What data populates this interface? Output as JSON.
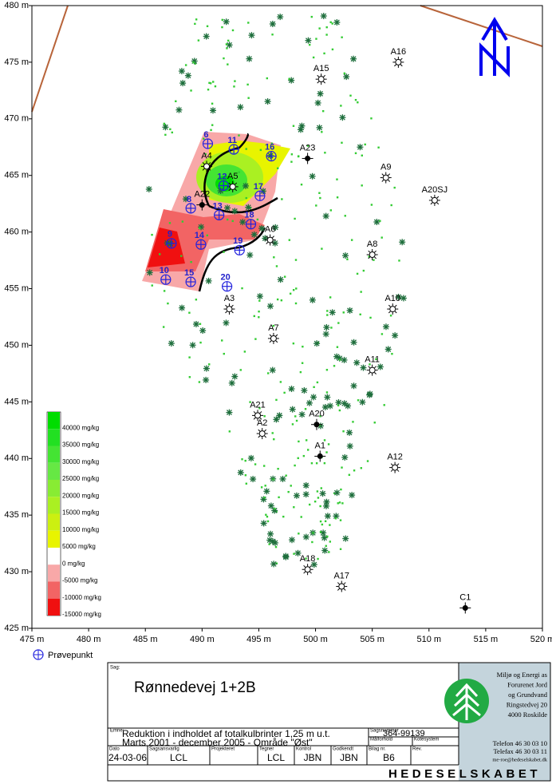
{
  "axes": {
    "xticks": [
      {
        "value": 475,
        "label": "475 m"
      },
      {
        "value": 480,
        "label": "480 m"
      },
      {
        "value": 485,
        "label": "485 m"
      },
      {
        "value": 490,
        "label": "490 m"
      },
      {
        "value": 495,
        "label": "495 m"
      },
      {
        "value": 500,
        "label": "500 m"
      },
      {
        "value": 505,
        "label": "505 m"
      },
      {
        "value": 510,
        "label": "510 m"
      },
      {
        "value": 515,
        "label": "515 m"
      },
      {
        "value": 520,
        "label": "520 m"
      }
    ],
    "yticks": [
      {
        "value": 425,
        "label": "425 m"
      },
      {
        "value": 430,
        "label": "430 m"
      },
      {
        "value": 435,
        "label": "435 m"
      },
      {
        "value": 440,
        "label": "440 m"
      },
      {
        "value": 445,
        "label": "445 m"
      },
      {
        "value": 450,
        "label": "450 m"
      },
      {
        "value": 455,
        "label": "455 m"
      },
      {
        "value": 460,
        "label": "460 m"
      },
      {
        "value": 465,
        "label": "465 m"
      },
      {
        "value": 470,
        "label": "470 m"
      },
      {
        "value": 475,
        "label": "475 m"
      },
      {
        "value": 480,
        "label": "480 m"
      }
    ],
    "xlim": [
      475,
      520
    ],
    "ylim": [
      425,
      480
    ]
  },
  "wells": [
    {
      "label": "A15",
      "x": 500.5,
      "y": 473.5,
      "kind": "open"
    },
    {
      "label": "A16",
      "x": 507.3,
      "y": 475.0,
      "kind": "open"
    },
    {
      "label": "A23",
      "x": 499.3,
      "y": 466.5,
      "kind": "filled"
    },
    {
      "label": "A4",
      "x": 490.4,
      "y": 465.8,
      "kind": "open"
    },
    {
      "label": "A5",
      "x": 492.7,
      "y": 464.0,
      "kind": "open"
    },
    {
      "label": "A22",
      "x": 490.0,
      "y": 462.4,
      "kind": "filled"
    },
    {
      "label": "A9",
      "x": 506.2,
      "y": 464.8,
      "kind": "open"
    },
    {
      "label": "A20SJ",
      "x": 510.5,
      "y": 462.8,
      "kind": "open"
    },
    {
      "label": "A6",
      "x": 496.0,
      "y": 459.3,
      "kind": "open"
    },
    {
      "label": "A8",
      "x": 505.0,
      "y": 458.0,
      "kind": "open"
    },
    {
      "label": "A3",
      "x": 492.4,
      "y": 453.2,
      "kind": "open"
    },
    {
      "label": "A10",
      "x": 506.8,
      "y": 453.2,
      "kind": "open"
    },
    {
      "label": "A7",
      "x": 496.3,
      "y": 450.6,
      "kind": "open"
    },
    {
      "label": "A11",
      "x": 505.0,
      "y": 447.8,
      "kind": "open"
    },
    {
      "label": "A21",
      "x": 494.9,
      "y": 443.8,
      "kind": "open"
    },
    {
      "label": "A2",
      "x": 495.3,
      "y": 442.2,
      "kind": "open"
    },
    {
      "label": "A20",
      "x": 500.1,
      "y": 443.0,
      "kind": "filled"
    },
    {
      "label": "A1",
      "x": 500.4,
      "y": 440.2,
      "kind": "filled"
    },
    {
      "label": "A12",
      "x": 507.0,
      "y": 439.2,
      "kind": "open"
    },
    {
      "label": "A18",
      "x": 499.3,
      "y": 430.2,
      "kind": "open"
    },
    {
      "label": "A17",
      "x": 502.3,
      "y": 428.7,
      "kind": "open"
    },
    {
      "label": "C1",
      "x": 513.2,
      "y": 426.8,
      "kind": "filled"
    }
  ],
  "probe_points": [
    {
      "label": "6",
      "x": 490.5,
      "y": 467.8
    },
    {
      "label": "11",
      "x": 492.8,
      "y": 467.3
    },
    {
      "label": "16",
      "x": 496.1,
      "y": 466.7
    },
    {
      "label": "12",
      "x": 491.9,
      "y": 464.1
    },
    {
      "label": "17",
      "x": 495.1,
      "y": 463.2
    },
    {
      "label": "8",
      "x": 489.0,
      "y": 462.1
    },
    {
      "label": "13",
      "x": 491.5,
      "y": 461.5
    },
    {
      "label": "18",
      "x": 494.3,
      "y": 460.7
    },
    {
      "label": "9",
      "x": 487.3,
      "y": 459.0
    },
    {
      "label": "14",
      "x": 489.9,
      "y": 458.9
    },
    {
      "label": "19",
      "x": 493.3,
      "y": 458.4
    },
    {
      "label": "10",
      "x": 486.8,
      "y": 455.8
    },
    {
      "label": "15",
      "x": 489.0,
      "y": 455.6
    },
    {
      "label": "20",
      "x": 492.2,
      "y": 455.2
    }
  ],
  "legend": {
    "items": [
      {
        "label": "40000 mg/kg",
        "color": "#00dd00"
      },
      {
        "label": "35000 mg/kg",
        "color": "#22e022"
      },
      {
        "label": "30000 mg/kg",
        "color": "#44e433"
      },
      {
        "label": "25000 mg/kg",
        "color": "#66e844"
      },
      {
        "label": "20000 mg/kg",
        "color": "#88ec33"
      },
      {
        "label": "15000 mg/kg",
        "color": "#aaf022"
      },
      {
        "label": "10000 mg/kg",
        "color": "#ccf011"
      },
      {
        "label": "5000 mg/kg",
        "color": "#e8f400"
      },
      {
        "label": "0 mg/kg",
        "color": "#ffffff"
      },
      {
        "label": "-5000 mg/kg",
        "color": "#f8a8a8"
      },
      {
        "label": "-10000 mg/kg",
        "color": "#f26464"
      },
      {
        "label": "-15000 mg/kg",
        "color": "#f01010"
      }
    ],
    "probe_label": "Prøvepunkt"
  },
  "title_block": {
    "sag_label": "Sag:",
    "title": "Rønnedevej 1+2B",
    "emne_label": "Emne:",
    "subject_line1": "Reduktion i indholdet af totalkulbrinter 1,25 m u.t.",
    "subject_line2": "Marts 2001 - december 2005 - Område \"Øst\"",
    "case_no_label": "Sagsnummer",
    "case_no": "364-99139",
    "scale_label": "Målforhold",
    "coord_label": "Kotesystem",
    "fields": [
      {
        "label": "Dato",
        "value": "24-03-06"
      },
      {
        "label": "Sagsansvarlig",
        "value": "LCL"
      },
      {
        "label": "Projekteret",
        "value": null
      },
      {
        "label": "Tegner",
        "value": "LCL"
      },
      {
        "label": "Kontrol",
        "value": "JBN"
      },
      {
        "label": "Godkendt",
        "value": "JBN"
      },
      {
        "label": "Bilag nr.",
        "value": "B6"
      },
      {
        "label": "Rev.",
        "value": null
      }
    ],
    "company": [
      "Miljø og Energi as",
      "Forurenet Jord",
      "og Grundvand",
      "Ringstedvej 20",
      "4000 Roskilde"
    ],
    "contact": [
      "Telefon 46 30 03 10",
      "Telefax 46 30 03 11",
      "me-roe@hedeselskabet.dk"
    ],
    "brand": "HEDESELSKABET"
  }
}
